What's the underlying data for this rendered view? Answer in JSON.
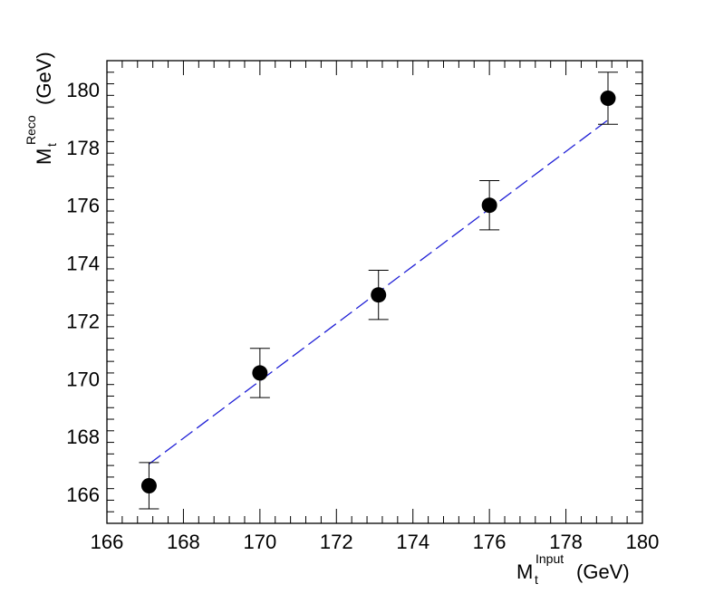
{
  "chart_data": {
    "type": "scatter",
    "xlabel": {
      "main": "M",
      "sub": "t",
      "sup": "Input",
      "unit": "(GeV)"
    },
    "ylabel": {
      "main": "M",
      "sub": "t",
      "sup": "Reco",
      "unit": "(GeV)"
    },
    "xlim": [
      166,
      180
    ],
    "ylim": [
      165,
      181
    ],
    "x_ticks": [
      166,
      168,
      170,
      172,
      174,
      176,
      178,
      180
    ],
    "y_ticks": [
      166,
      168,
      170,
      172,
      174,
      176,
      178,
      180
    ],
    "grid": false,
    "points": [
      {
        "x": 167.1,
        "y": 166.3,
        "err": 0.8
      },
      {
        "x": 170.0,
        "y": 170.2,
        "err": 0.85
      },
      {
        "x": 173.1,
        "y": 172.9,
        "err": 0.85
      },
      {
        "x": 176.0,
        "y": 176.0,
        "err": 0.85
      },
      {
        "x": 179.1,
        "y": 179.7,
        "err": 0.9
      }
    ],
    "fit_line": {
      "x1": 167.1,
      "y1": 167.05,
      "x2": 179.1,
      "y2": 178.95,
      "color": "#1f1fd6",
      "style": "dashed"
    },
    "marker_color": "#000000"
  }
}
